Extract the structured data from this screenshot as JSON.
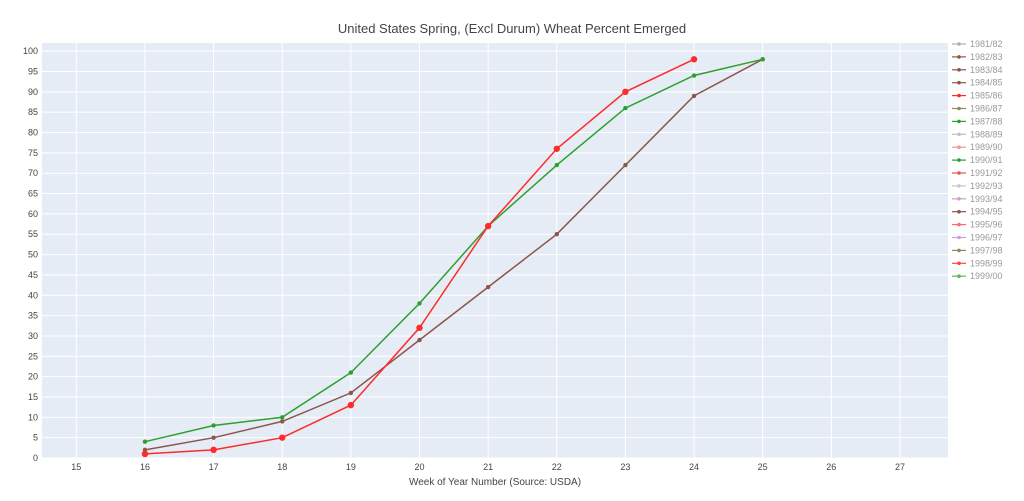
{
  "chart_data": {
    "type": "line",
    "title": "United States Spring, (Excl Durum) Wheat Percent Emerged",
    "xlabel": "Week of Year Number    (Source: USDA)",
    "ylabel": "",
    "xlim": [
      14.5,
      27.7
    ],
    "ylim": [
      0,
      102
    ],
    "x_ticks": [
      15,
      16,
      17,
      18,
      19,
      20,
      21,
      22,
      23,
      24,
      25,
      26,
      27
    ],
    "y_ticks": [
      0,
      5,
      10,
      15,
      20,
      25,
      30,
      35,
      40,
      45,
      50,
      55,
      60,
      65,
      70,
      75,
      80,
      85,
      90,
      95,
      100
    ],
    "grid": true,
    "legend_position": "right",
    "legend": [
      {
        "name": "1981/82",
        "color": "#b0b0b0"
      },
      {
        "name": "1982/83",
        "color": "#8c564b"
      },
      {
        "name": "1983/84",
        "color": "#8c564b"
      },
      {
        "name": "1984/85",
        "color": "#8c564b"
      },
      {
        "name": "1985/86",
        "color": "#ff2a2a"
      },
      {
        "name": "1986/87",
        "color": "#8c8c5a"
      },
      {
        "name": "1987/88",
        "color": "#2ca02c"
      },
      {
        "name": "1988/89",
        "color": "#c0c0c0"
      },
      {
        "name": "1989/90",
        "color": "#e89a9a"
      },
      {
        "name": "1990/91",
        "color": "#2ca02c"
      },
      {
        "name": "1991/92",
        "color": "#e05555"
      },
      {
        "name": "1992/93",
        "color": "#c8c8c8"
      },
      {
        "name": "1993/94",
        "color": "#c9a0c9"
      },
      {
        "name": "1994/95",
        "color": "#8c564b"
      },
      {
        "name": "1995/96",
        "color": "#ff6b6b"
      },
      {
        "name": "1996/97",
        "color": "#d0a0d0"
      },
      {
        "name": "1997/98",
        "color": "#8c8c5a"
      },
      {
        "name": "1998/99",
        "color": "#ff4444"
      },
      {
        "name": "1999/00",
        "color": "#5cb85c"
      }
    ],
    "series": [
      {
        "color": "#8c564b",
        "marker_size": 2.2,
        "x": [
          16,
          17,
          18,
          19,
          20,
          21,
          22,
          23,
          24,
          25
        ],
        "y": [
          2,
          5,
          9,
          16,
          29,
          42,
          55,
          72,
          89,
          98
        ]
      },
      {
        "color": "#2ca02c",
        "marker_size": 2.2,
        "x": [
          16,
          17,
          18,
          19,
          20,
          21,
          22,
          23,
          24,
          25
        ],
        "y": [
          4,
          8,
          10,
          21,
          38,
          57,
          72,
          86,
          94,
          98
        ]
      },
      {
        "color": "#ff2a2a",
        "marker_size": 3.2,
        "x": [
          16,
          17,
          18,
          19,
          20,
          21,
          22,
          23,
          24
        ],
        "y": [
          1,
          2,
          5,
          13,
          32,
          57,
          76,
          90,
          98
        ]
      }
    ]
  }
}
